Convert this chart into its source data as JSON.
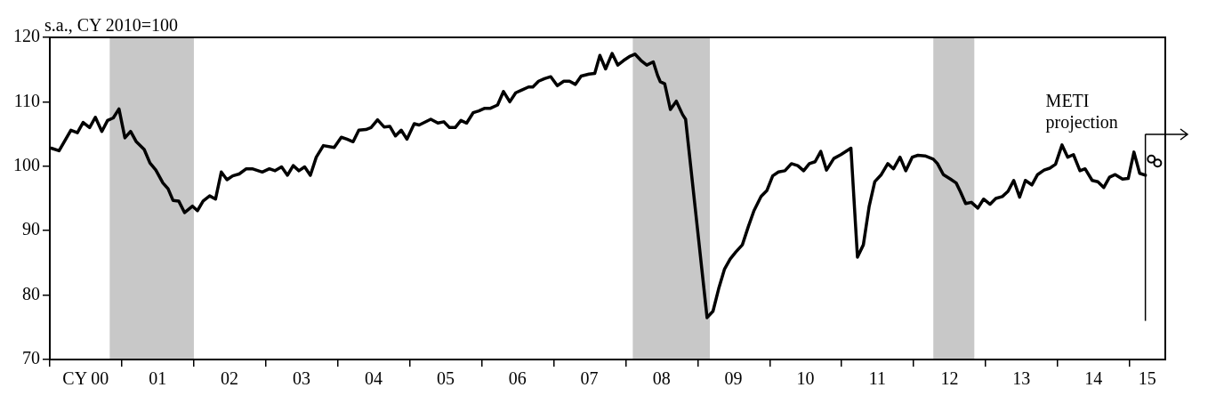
{
  "chart_data": {
    "type": "line",
    "ylabel": "s.a., CY 2010=100",
    "xlim": [
      "2000-01-01",
      "2015-07-01"
    ],
    "xticks": [
      {
        "value": "2000-01-01",
        "label": null
      },
      {
        "value": "2000-07-01",
        "label": "CY 00"
      },
      {
        "value": "2001-01-01",
        "label": null
      },
      {
        "value": "2001-07-01",
        "label": "01"
      },
      {
        "value": "2002-01-01",
        "label": null
      },
      {
        "value": "2002-07-01",
        "label": "02"
      },
      {
        "value": "2003-01-01",
        "label": null
      },
      {
        "value": "2003-07-01",
        "label": "03"
      },
      {
        "value": "2004-01-01",
        "label": null
      },
      {
        "value": "2004-07-01",
        "label": "04"
      },
      {
        "value": "2005-01-01",
        "label": null
      },
      {
        "value": "2005-07-01",
        "label": "05"
      },
      {
        "value": "2006-01-01",
        "label": null
      },
      {
        "value": "2006-07-01",
        "label": "06"
      },
      {
        "value": "2007-01-01",
        "label": null
      },
      {
        "value": "2007-07-01",
        "label": "07"
      },
      {
        "value": "2008-01-01",
        "label": null
      },
      {
        "value": "2008-07-01",
        "label": "08"
      },
      {
        "value": "2009-01-01",
        "label": null
      },
      {
        "value": "2009-07-01",
        "label": "09"
      },
      {
        "value": "2010-01-01",
        "label": null
      },
      {
        "value": "2010-07-01",
        "label": "10"
      },
      {
        "value": "2011-01-01",
        "label": null
      },
      {
        "value": "2011-07-01",
        "label": "11"
      },
      {
        "value": "2012-01-01",
        "label": null
      },
      {
        "value": "2012-07-01",
        "label": "12"
      },
      {
        "value": "2013-01-01",
        "label": null
      },
      {
        "value": "2013-07-01",
        "label": "13"
      },
      {
        "value": "2014-01-01",
        "label": null
      },
      {
        "value": "2014-07-01",
        "label": "14"
      },
      {
        "value": "2015-01-01",
        "label": null
      },
      {
        "value": "2015-04-01",
        "label": "15"
      }
    ],
    "ylim": [
      70,
      120
    ],
    "yticks": [
      70,
      80,
      90,
      100,
      110,
      120
    ],
    "grid": false,
    "bands": [
      {
        "axis": "x",
        "from": "2000-10-31",
        "to": "2002-01-01",
        "color": "#c8c8c8"
      },
      {
        "axis": "x",
        "from": "2008-02-06",
        "to": "2009-03-03",
        "color": "#c8c8c8"
      },
      {
        "axis": "x",
        "from": "2012-04-10",
        "to": "2012-11-04",
        "color": "#c8c8c8"
      }
    ],
    "ref_lines": [
      {
        "axis": "x",
        "value": "2015-03-22",
        "label": "METI projection",
        "color": "#000000"
      }
    ],
    "series": [
      {
        "color": "#000000",
        "marker": "none",
        "x": [
          "2000-01-08",
          "2000-02-17",
          "2000-04-17",
          "2000-05-20",
          "2000-06-18",
          "2000-07-21",
          "2000-08-19",
          "2000-09-21",
          "2000-10-20",
          "2000-11-18",
          "2000-12-17",
          "2001-01-16",
          "2001-02-14",
          "2001-03-15",
          "2001-04-24",
          "2001-05-23",
          "2001-06-22",
          "2001-07-28",
          "2001-08-23",
          "2001-09-17",
          "2001-10-16",
          "2001-11-15",
          "2001-12-25",
          "2002-01-19",
          "2002-02-17",
          "2002-03-22",
          "2002-04-21",
          "2002-05-20",
          "2002-06-18",
          "2002-07-17",
          "2002-08-19",
          "2002-09-24",
          "2002-10-24",
          "2002-12-14",
          "2003-01-19",
          "2003-02-17",
          "2003-03-22",
          "2003-04-21",
          "2003-05-20",
          "2003-06-18",
          "2003-07-17",
          "2003-08-15",
          "2003-09-14",
          "2003-10-20",
          "2003-12-14",
          "2004-01-19",
          "2004-02-17",
          "2004-03-19",
          "2004-04-17",
          "2004-05-23",
          "2004-06-18",
          "2004-07-21",
          "2004-08-23",
          "2004-09-21",
          "2004-10-20",
          "2004-11-18",
          "2004-12-17",
          "2005-01-23",
          "2005-02-17",
          "2005-04-17",
          "2005-05-23",
          "2005-06-22",
          "2005-07-21",
          "2005-08-19",
          "2005-09-17",
          "2005-10-16",
          "2005-11-18",
          "2005-12-17",
          "2006-01-16",
          "2006-02-14",
          "2006-03-22",
          "2006-04-21",
          "2006-05-23",
          "2006-06-22",
          "2006-07-21",
          "2006-08-26",
          "2006-09-17",
          "2006-10-16",
          "2006-11-15",
          "2006-12-17",
          "2007-01-19",
          "2007-02-21",
          "2007-03-22",
          "2007-04-21",
          "2007-05-20",
          "2007-06-29",
          "2007-07-28",
          "2007-08-23",
          "2007-09-21",
          "2007-10-24",
          "2007-11-22",
          "2007-12-21",
          "2008-01-19",
          "2008-02-17",
          "2008-03-19",
          "2008-04-17",
          "2008-05-20",
          "2008-06-11",
          "2008-06-25",
          "2008-07-17",
          "2008-08-15",
          "2008-09-14",
          "2008-10-16",
          "2008-10-31",
          "2009-02-17",
          "2009-03-19",
          "2009-04-17",
          "2009-05-16",
          "2009-06-14",
          "2009-07-13",
          "2009-08-15",
          "2009-09-14",
          "2009-10-13",
          "2009-11-18",
          "2009-12-17",
          "2010-01-16",
          "2010-02-14",
          "2010-03-19",
          "2010-04-21",
          "2010-05-23",
          "2010-06-22",
          "2010-07-21",
          "2010-08-19",
          "2010-09-17",
          "2010-10-16",
          "2010-11-22",
          "2010-12-28",
          "2011-02-17",
          "2011-03-22",
          "2011-04-21",
          "2011-05-20",
          "2011-06-18",
          "2011-07-21",
          "2011-08-23",
          "2011-09-21",
          "2011-10-24",
          "2011-11-22",
          "2011-12-25",
          "2012-01-23",
          "2012-02-28",
          "2012-04-10",
          "2012-05-01",
          "2012-05-31",
          "2012-07-06",
          "2012-08-04",
          "2012-08-26",
          "2012-09-21",
          "2012-10-20",
          "2012-11-22",
          "2012-12-21",
          "2013-01-23",
          "2013-02-21",
          "2013-03-26",
          "2013-04-24",
          "2013-05-23",
          "2013-06-22",
          "2013-07-21",
          "2013-08-23",
          "2013-09-21",
          "2013-10-24",
          "2013-11-22",
          "2013-12-21",
          "2014-01-23",
          "2014-02-21",
          "2014-03-22",
          "2014-04-24",
          "2014-05-20",
          "2014-06-25",
          "2014-07-24",
          "2014-08-23",
          "2014-09-21",
          "2014-10-20",
          "2014-11-26",
          "2014-12-25",
          "2015-01-23",
          "2015-02-21",
          "2015-03-22"
        ],
        "values": [
          102.8,
          102.4,
          105.6,
          105.2,
          106.8,
          106.0,
          107.6,
          105.4,
          107.1,
          107.5,
          108.9,
          104.4,
          105.4,
          103.8,
          102.6,
          100.5,
          99.4,
          97.4,
          96.5,
          94.7,
          94.6,
          92.8,
          93.8,
          93.1,
          94.6,
          95.4,
          94.9,
          99.1,
          97.9,
          98.5,
          98.8,
          99.6,
          99.6,
          99.1,
          99.6,
          99.3,
          99.9,
          98.6,
          100.1,
          99.3,
          99.9,
          98.6,
          101.4,
          103.2,
          102.9,
          104.5,
          104.2,
          103.8,
          105.6,
          105.7,
          106.0,
          107.2,
          106.1,
          106.2,
          104.7,
          105.6,
          104.2,
          106.6,
          106.4,
          107.3,
          106.7,
          106.9,
          106.0,
          106.0,
          107.1,
          106.7,
          108.3,
          108.6,
          109.0,
          109.0,
          109.5,
          111.6,
          110.0,
          111.4,
          111.8,
          112.3,
          112.3,
          113.2,
          113.6,
          113.9,
          112.5,
          113.2,
          113.2,
          112.7,
          114.0,
          114.3,
          114.4,
          117.2,
          115.1,
          117.5,
          115.7,
          116.4,
          117.0,
          117.4,
          116.4,
          115.7,
          116.2,
          114.1,
          113.1,
          112.8,
          108.8,
          110.1,
          108.0,
          107.3,
          76.5,
          77.5,
          81.0,
          84.0,
          85.6,
          86.7,
          87.8,
          90.6,
          93.1,
          95.3,
          96.2,
          98.5,
          99.1,
          99.3,
          100.4,
          100.1,
          99.3,
          100.4,
          100.7,
          102.3,
          99.4,
          101.2,
          101.8,
          102.8,
          85.9,
          87.8,
          93.7,
          97.6,
          98.7,
          100.4,
          99.6,
          101.4,
          99.3,
          101.4,
          101.7,
          101.6,
          101.1,
          100.4,
          98.7,
          98.0,
          97.4,
          96.0,
          94.2,
          94.4,
          93.5,
          94.9,
          94.1,
          95.0,
          95.3,
          96.1,
          97.8,
          95.2,
          97.8,
          97.1,
          98.7,
          99.4,
          99.7,
          100.3,
          103.3,
          101.4,
          101.8,
          99.3,
          99.6,
          97.8,
          97.6,
          96.7,
          98.3,
          98.7,
          98.0,
          98.1,
          102.2,
          98.9,
          98.6
        ]
      },
      {
        "type": "scatter",
        "color": "#000000",
        "marker": "circle",
        "x": [
          "2015-04-21",
          "2015-05-23"
        ],
        "values": [
          101.1,
          100.5
        ]
      }
    ]
  }
}
